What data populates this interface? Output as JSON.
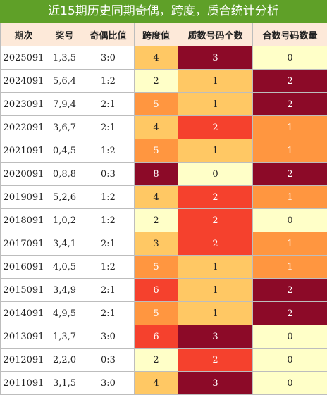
{
  "title": "近15期历史同期奇偶，跨度，质合统计分析",
  "headers": [
    "期次",
    "奖号",
    "奇偶比值",
    "跨度值",
    "质数号码个数",
    "合数号码数量"
  ],
  "palette": {
    "pale_yellow": "#ffffc8",
    "light_orange": "#ffc864",
    "orange": "#ff9640",
    "red_orange": "#f5412d",
    "dark_red": "#8c0a28"
  },
  "rows": [
    {
      "period": "2025091",
      "number": "1,3,5",
      "odd_even": "3:0",
      "span": "4",
      "span_color": "light_orange",
      "prime": "3",
      "prime_color": "dark_red",
      "composite": "0",
      "composite_color": "pale_yellow"
    },
    {
      "period": "2024091",
      "number": "5,6,4",
      "odd_even": "1:2",
      "span": "2",
      "span_color": "pale_yellow",
      "prime": "1",
      "prime_color": "light_orange",
      "composite": "2",
      "composite_color": "dark_red"
    },
    {
      "period": "2023091",
      "number": "7,9,4",
      "odd_even": "2:1",
      "span": "5",
      "span_color": "orange",
      "prime": "1",
      "prime_color": "light_orange",
      "composite": "2",
      "composite_color": "dark_red"
    },
    {
      "period": "2022091",
      "number": "3,6,7",
      "odd_even": "2:1",
      "span": "4",
      "span_color": "light_orange",
      "prime": "2",
      "prime_color": "red_orange",
      "composite": "1",
      "composite_color": "orange"
    },
    {
      "period": "2021091",
      "number": "0,4,5",
      "odd_even": "1:2",
      "span": "5",
      "span_color": "orange",
      "prime": "1",
      "prime_color": "light_orange",
      "composite": "1",
      "composite_color": "orange"
    },
    {
      "period": "2020091",
      "number": "0,8,8",
      "odd_even": "0:3",
      "span": "8",
      "span_color": "dark_red",
      "prime": "0",
      "prime_color": "pale_yellow",
      "composite": "2",
      "composite_color": "dark_red"
    },
    {
      "period": "2019091",
      "number": "5,2,6",
      "odd_even": "1:2",
      "span": "4",
      "span_color": "light_orange",
      "prime": "2",
      "prime_color": "red_orange",
      "composite": "1",
      "composite_color": "orange"
    },
    {
      "period": "2018091",
      "number": "1,0,2",
      "odd_even": "1:2",
      "span": "2",
      "span_color": "pale_yellow",
      "prime": "2",
      "prime_color": "red_orange",
      "composite": "0",
      "composite_color": "pale_yellow"
    },
    {
      "period": "2017091",
      "number": "3,4,1",
      "odd_even": "2:1",
      "span": "3",
      "span_color": "light_orange",
      "prime": "2",
      "prime_color": "red_orange",
      "composite": "1",
      "composite_color": "orange"
    },
    {
      "period": "2016091",
      "number": "4,0,5",
      "odd_even": "1:2",
      "span": "5",
      "span_color": "orange",
      "prime": "1",
      "prime_color": "light_orange",
      "composite": "1",
      "composite_color": "orange"
    },
    {
      "period": "2015091",
      "number": "3,4,9",
      "odd_even": "2:1",
      "span": "6",
      "span_color": "red_orange",
      "prime": "1",
      "prime_color": "light_orange",
      "composite": "2",
      "composite_color": "dark_red"
    },
    {
      "period": "2014091",
      "number": "4,9,5",
      "odd_even": "2:1",
      "span": "5",
      "span_color": "orange",
      "prime": "1",
      "prime_color": "light_orange",
      "composite": "2",
      "composite_color": "dark_red"
    },
    {
      "period": "2013091",
      "number": "1,3,7",
      "odd_even": "3:0",
      "span": "6",
      "span_color": "red_orange",
      "prime": "3",
      "prime_color": "dark_red",
      "composite": "0",
      "composite_color": "pale_yellow"
    },
    {
      "period": "2012091",
      "number": "2,2,0",
      "odd_even": "0:3",
      "span": "2",
      "span_color": "pale_yellow",
      "prime": "2",
      "prime_color": "red_orange",
      "composite": "0",
      "composite_color": "pale_yellow"
    },
    {
      "period": "2011091",
      "number": "3,1,5",
      "odd_even": "3:0",
      "span": "4",
      "span_color": "light_orange",
      "prime": "3",
      "prime_color": "dark_red",
      "composite": "0",
      "composite_color": "pale_yellow"
    }
  ]
}
